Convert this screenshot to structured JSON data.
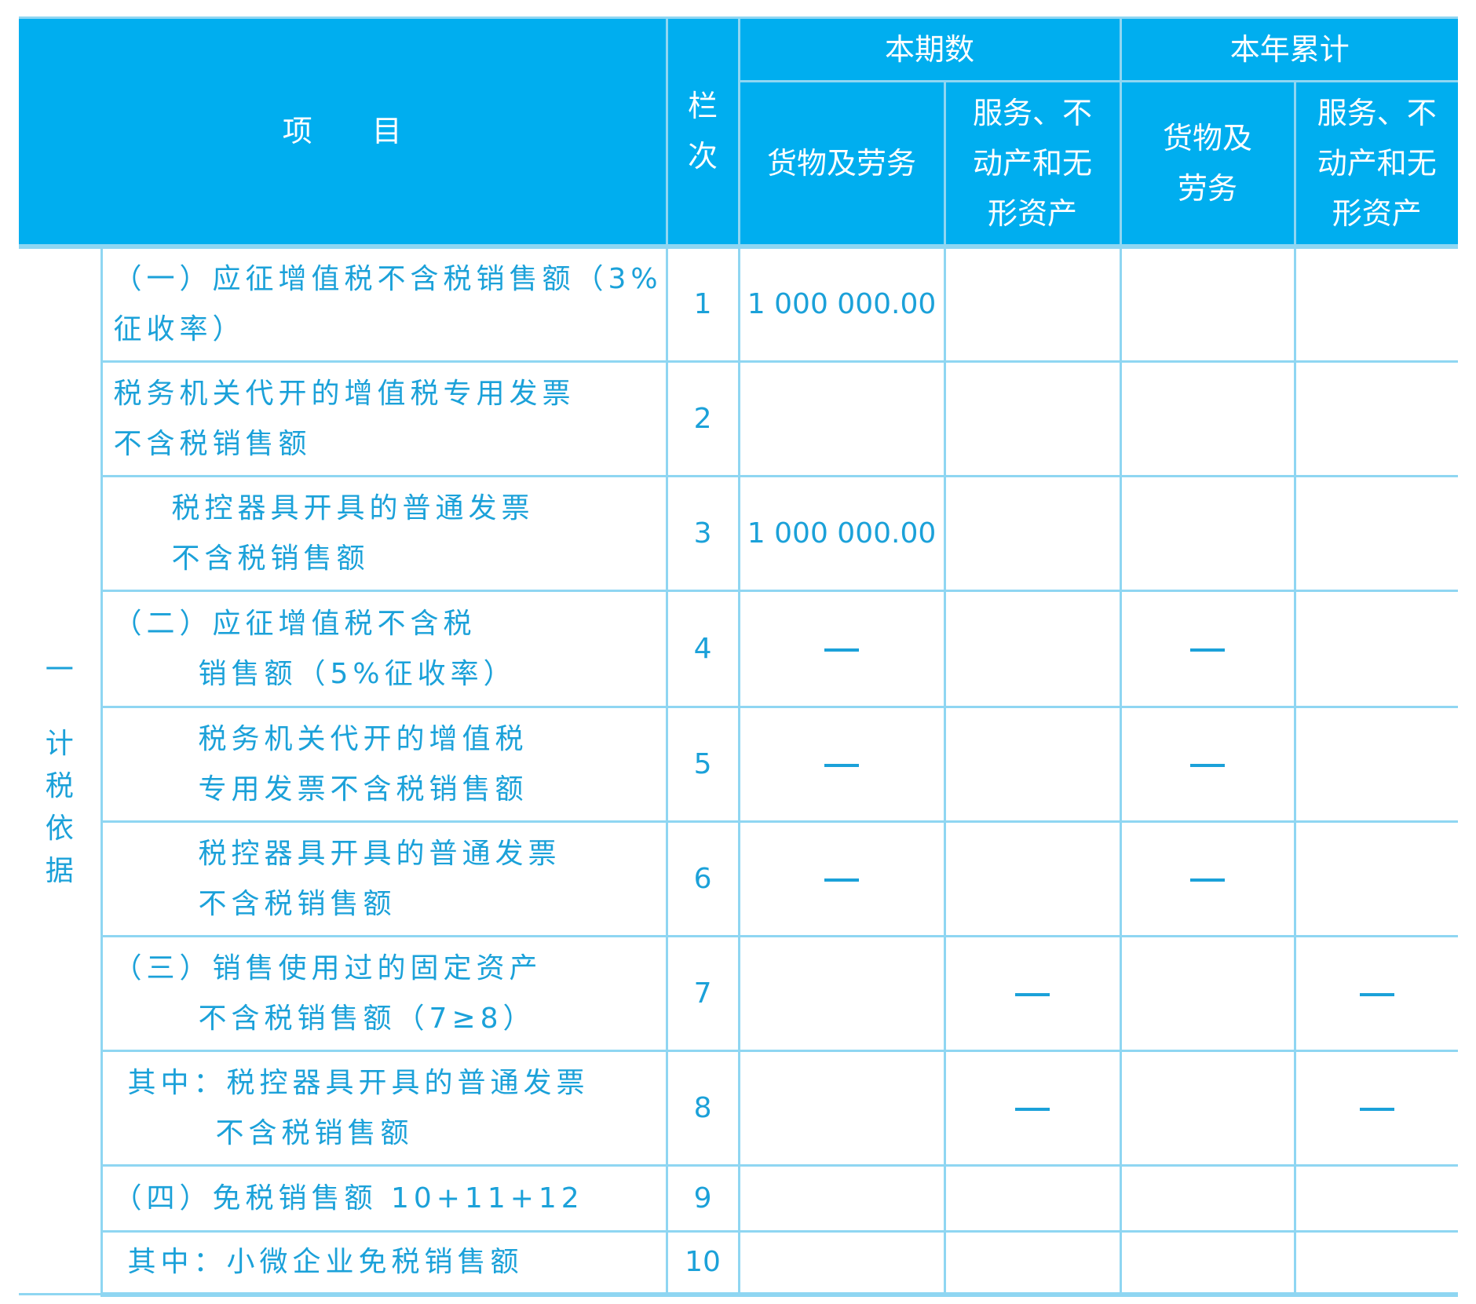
{
  "header": {
    "item": "项　　目",
    "line_no": [
      "栏",
      "次"
    ],
    "current_period": "本期数",
    "year_to_date": "本年累计",
    "goods_services": "货物及劳务",
    "goods_services_ytd": [
      "货物及",
      "劳务"
    ],
    "services_property": [
      "服务、不",
      "动产和无",
      "形资产"
    ]
  },
  "group_label": {
    "number": "一",
    "chars": [
      "计",
      "税",
      "依",
      "据"
    ]
  },
  "rows": [
    {
      "lines": [
        "（一）应征增值税不含税销售额（3%",
        "征收率）"
      ],
      "no": "1",
      "values": [
        "1  000 000.00",
        "",
        "",
        ""
      ]
    },
    {
      "lines": [
        "税务机关代开的增值税专用发票",
        "不含税销售额"
      ],
      "no": "2",
      "values": [
        "",
        "",
        "",
        ""
      ]
    },
    {
      "lines": [
        "税控器具开具的普通发票",
        "不含税销售额"
      ],
      "no": "3",
      "values": [
        "1  000 000.00",
        "",
        "",
        ""
      ]
    },
    {
      "lines": [
        "（二）应征增值税不含税",
        "销售额（5%征收率）"
      ],
      "no": "4",
      "values": [
        "—",
        "",
        "—",
        ""
      ]
    },
    {
      "lines": [
        "税务机关代开的增值税",
        "专用发票不含税销售额"
      ],
      "no": "5",
      "values": [
        "—",
        "",
        "—",
        ""
      ]
    },
    {
      "lines": [
        "税控器具开具的普通发票",
        "不含税销售额"
      ],
      "no": "6",
      "values": [
        "—",
        "",
        "—",
        ""
      ]
    },
    {
      "lines": [
        "（三）销售使用过的固定资产",
        "不含税销售额（7≥8）"
      ],
      "no": "7",
      "values": [
        "",
        "—",
        "",
        "—"
      ]
    },
    {
      "lines": [
        "其中：税控器具开具的普通发票",
        "不含税销售额"
      ],
      "no": "8",
      "values": [
        "",
        "—",
        "",
        "—"
      ]
    },
    {
      "lines": [
        "（四）免税销售额 10+11+12"
      ],
      "no": "9",
      "values": [
        "",
        "",
        "",
        ""
      ]
    },
    {
      "lines": [
        "其中：小微企业免税销售额"
      ],
      "no": "10",
      "values": [
        "",
        "",
        "",
        ""
      ]
    }
  ],
  "colors": {
    "header_bg": "#00aeef",
    "header_text": "#ffffff",
    "grid": "#8fd6f2",
    "body_text": "#1ba1d9"
  }
}
